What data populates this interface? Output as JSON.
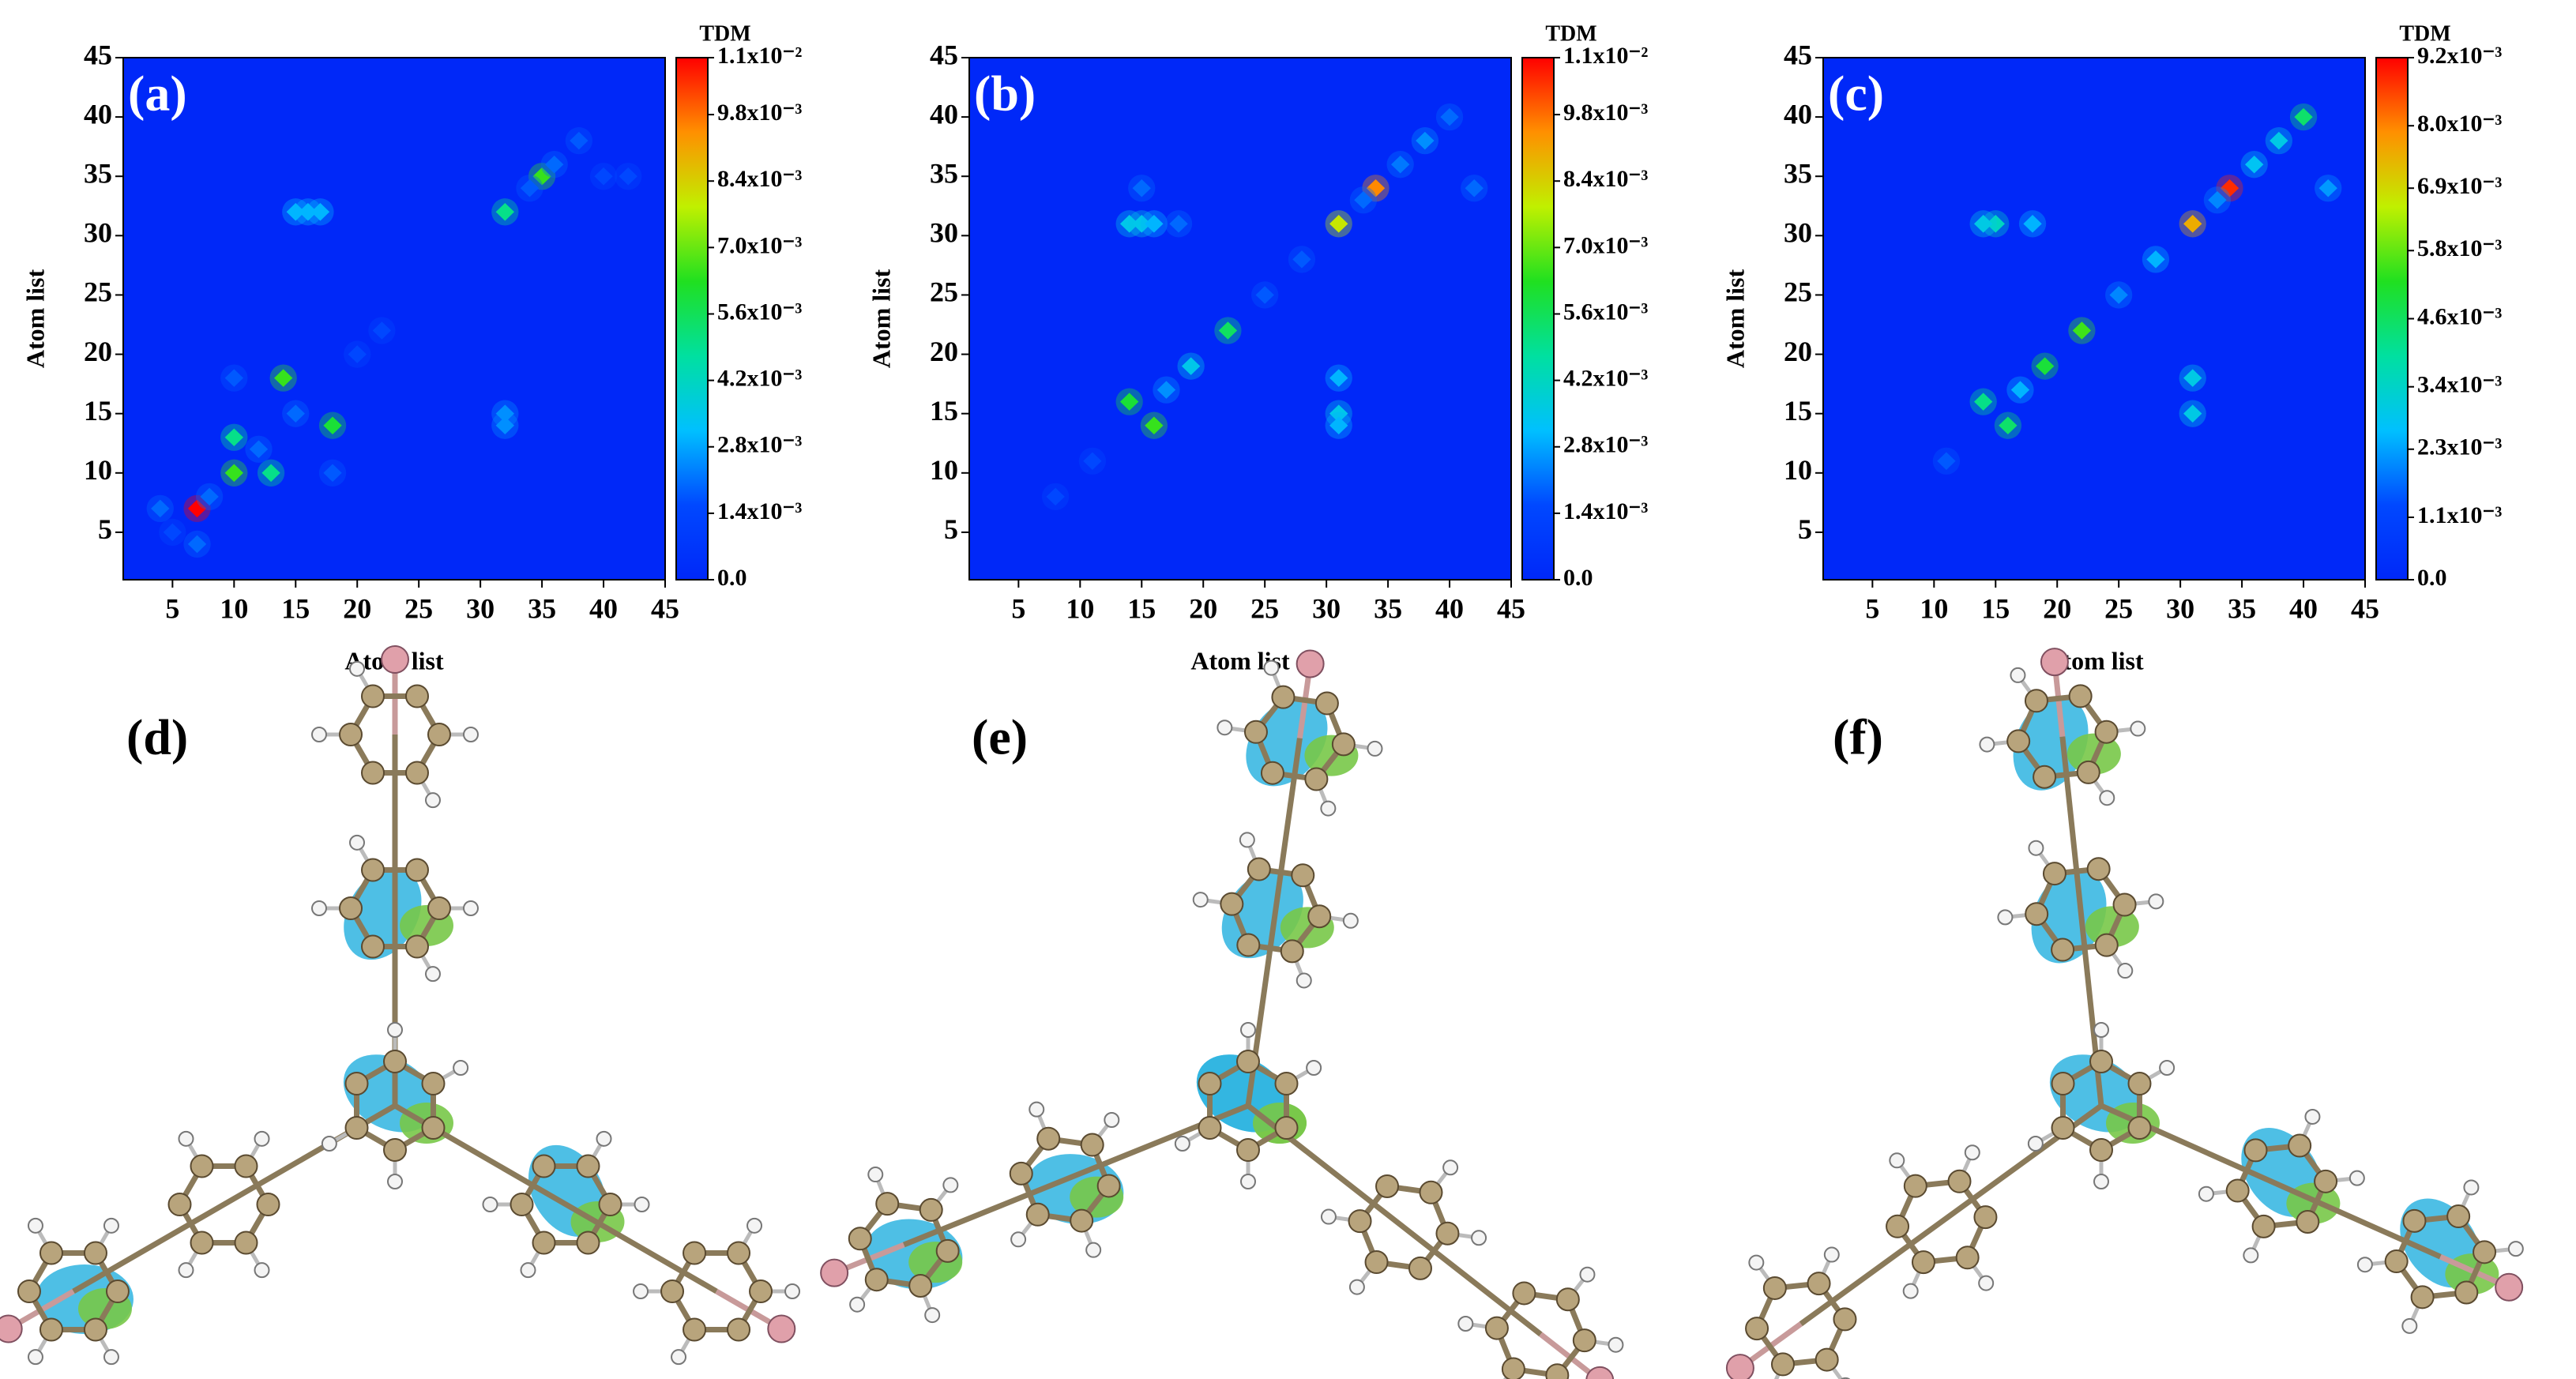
{
  "chart_data": [
    {
      "type": "heatmap",
      "label": "(a)",
      "xlabel": "Atom list",
      "ylabel": "Atom list",
      "colorbar_title": "TDM",
      "xlim": [
        1,
        45
      ],
      "ylim": [
        1,
        45
      ],
      "xticks": [
        5,
        10,
        15,
        20,
        25,
        30,
        35,
        40,
        45
      ],
      "yticks": [
        5,
        10,
        15,
        20,
        25,
        30,
        35,
        40,
        45
      ],
      "zlim": [
        0,
        0.011
      ],
      "zticks": [
        {
          "value": 0,
          "label": "0.0"
        },
        {
          "value": 0.0014,
          "label": "1.4x10⁻³"
        },
        {
          "value": 0.0028,
          "label": "2.8x10⁻³"
        },
        {
          "value": 0.0042,
          "label": "4.2x10⁻³"
        },
        {
          "value": 0.0056,
          "label": "5.6x10⁻³"
        },
        {
          "value": 0.007,
          "label": "7.0x10⁻³"
        },
        {
          "value": 0.0084,
          "label": "8.4x10⁻³"
        },
        {
          "value": 0.0098,
          "label": "9.8x10⁻³"
        },
        {
          "value": 0.011,
          "label": "1.1x10⁻²"
        }
      ],
      "colormap": [
        "#0028f8",
        "#0048ff",
        "#00c0ff",
        "#00e0a0",
        "#20e020",
        "#c0f000",
        "#ff9000",
        "#ff0000"
      ],
      "x": [
        7,
        10,
        10,
        14,
        18,
        13,
        35,
        32,
        15,
        16,
        17,
        32,
        32,
        8,
        5,
        12,
        36,
        38,
        34,
        40,
        42,
        4,
        7,
        20,
        22,
        18,
        15,
        10
      ],
      "y": [
        7,
        10,
        13,
        18,
        14,
        10,
        35,
        32,
        32,
        32,
        32,
        15,
        14,
        8,
        5,
        12,
        36,
        38,
        34,
        35,
        35,
        7,
        4,
        20,
        22,
        10,
        15,
        18
      ],
      "values": [
        0.011,
        0.0065,
        0.005,
        0.0065,
        0.006,
        0.005,
        0.0065,
        0.005,
        0.003,
        0.003,
        0.003,
        0.0025,
        0.0025,
        0.002,
        0.0015,
        0.002,
        0.002,
        0.0018,
        0.0018,
        0.0015,
        0.0015,
        0.002,
        0.002,
        0.0015,
        0.0015,
        0.0018,
        0.002,
        0.0018
      ]
    },
    {
      "type": "heatmap",
      "label": "(b)",
      "xlabel": "Atom list",
      "ylabel": "Atom list",
      "colorbar_title": "TDM",
      "xlim": [
        1,
        45
      ],
      "ylim": [
        1,
        45
      ],
      "xticks": [
        5,
        10,
        15,
        20,
        25,
        30,
        35,
        40,
        45
      ],
      "yticks": [
        5,
        10,
        15,
        20,
        25,
        30,
        35,
        40,
        45
      ],
      "zlim": [
        0,
        0.011
      ],
      "zticks": [
        {
          "value": 0,
          "label": "0.0"
        },
        {
          "value": 0.0014,
          "label": "1.4x10⁻³"
        },
        {
          "value": 0.0028,
          "label": "2.8x10⁻³"
        },
        {
          "value": 0.0042,
          "label": "4.2x10⁻³"
        },
        {
          "value": 0.0056,
          "label": "5.6x10⁻³"
        },
        {
          "value": 0.007,
          "label": "7.0x10⁻³"
        },
        {
          "value": 0.0084,
          "label": "8.4x10⁻³"
        },
        {
          "value": 0.0098,
          "label": "9.8x10⁻³"
        },
        {
          "value": 0.011,
          "label": "1.1x10⁻²"
        }
      ],
      "colormap": [
        "#0028f8",
        "#0048ff",
        "#00c0ff",
        "#00e0a0",
        "#20e020",
        "#c0f000",
        "#ff9000",
        "#ff0000"
      ],
      "x": [
        34,
        31,
        16,
        14,
        22,
        19,
        14,
        15,
        16,
        31,
        31,
        31,
        38,
        40,
        36,
        42,
        33,
        25,
        28,
        17,
        15,
        11,
        8,
        18
      ],
      "y": [
        34,
        31,
        14,
        16,
        22,
        19,
        31,
        31,
        31,
        15,
        18,
        14,
        38,
        40,
        36,
        34,
        33,
        25,
        28,
        17,
        34,
        11,
        8,
        31
      ],
      "values": [
        0.0095,
        0.008,
        0.0065,
        0.006,
        0.0055,
        0.0035,
        0.0035,
        0.0035,
        0.003,
        0.0035,
        0.003,
        0.003,
        0.0025,
        0.002,
        0.0022,
        0.002,
        0.002,
        0.0018,
        0.0018,
        0.0025,
        0.002,
        0.0015,
        0.0015,
        0.002
      ]
    },
    {
      "type": "heatmap",
      "label": "(c)",
      "xlabel": "Atom list",
      "ylabel": "Atom list",
      "colorbar_title": "TDM",
      "xlim": [
        1,
        45
      ],
      "ylim": [
        1,
        45
      ],
      "xticks": [
        5,
        10,
        15,
        20,
        25,
        30,
        35,
        40,
        45
      ],
      "yticks": [
        5,
        10,
        15,
        20,
        25,
        30,
        35,
        40,
        45
      ],
      "zlim": [
        0,
        0.0092
      ],
      "zticks": [
        {
          "value": 0,
          "label": "0.0"
        },
        {
          "value": 0.0011,
          "label": "1.1x10⁻³"
        },
        {
          "value": 0.0023,
          "label": "2.3x10⁻³"
        },
        {
          "value": 0.0034,
          "label": "3.4x10⁻³"
        },
        {
          "value": 0.0046,
          "label": "4.6x10⁻³"
        },
        {
          "value": 0.0058,
          "label": "5.8x10⁻³"
        },
        {
          "value": 0.0069,
          "label": "6.9x10⁻³"
        },
        {
          "value": 0.008,
          "label": "8.0x10⁻³"
        },
        {
          "value": 0.0092,
          "label": "9.2x10⁻³"
        }
      ],
      "colormap": [
        "#0028f8",
        "#0048ff",
        "#00c0ff",
        "#00e0a0",
        "#20e020",
        "#c0f000",
        "#ff9000",
        "#ff0000"
      ],
      "x": [
        34,
        31,
        22,
        19,
        16,
        14,
        40,
        38,
        36,
        15,
        14,
        18,
        31,
        31,
        28,
        25,
        17,
        42,
        33,
        11
      ],
      "y": [
        34,
        31,
        22,
        19,
        14,
        16,
        40,
        38,
        36,
        31,
        31,
        31,
        15,
        18,
        28,
        25,
        17,
        34,
        33,
        11
      ],
      "values": [
        0.0088,
        0.0075,
        0.0055,
        0.005,
        0.0045,
        0.0042,
        0.0045,
        0.003,
        0.0028,
        0.0035,
        0.003,
        0.0025,
        0.003,
        0.003,
        0.0025,
        0.002,
        0.0025,
        0.0022,
        0.002,
        0.0015
      ]
    }
  ],
  "molecule_panels": [
    {
      "label": "(d)"
    },
    {
      "label": "(e)"
    },
    {
      "label": "(f)"
    }
  ]
}
